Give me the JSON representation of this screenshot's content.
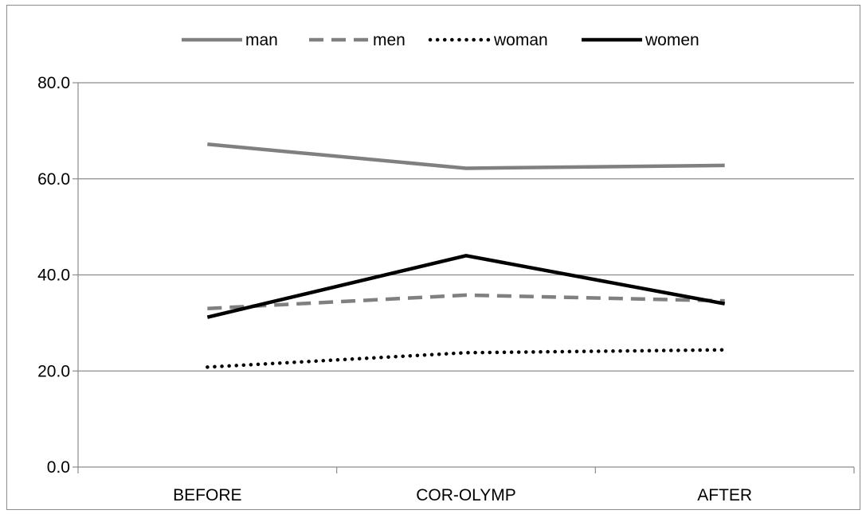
{
  "chart_data": {
    "type": "line",
    "categories": [
      "BEFORE",
      "COR-OLYMP",
      "AFTER"
    ],
    "ylim": [
      0,
      80
    ],
    "yticks": [
      "0.0",
      "20.0",
      "40.0",
      "60.0",
      "80.0"
    ],
    "ytick_values": [
      0,
      20,
      40,
      60,
      80
    ],
    "grid": true,
    "legend_position": "top",
    "series": [
      {
        "name": "man",
        "values": [
          67.2,
          62.2,
          62.8
        ],
        "color": "#808080",
        "style": "solid"
      },
      {
        "name": "men",
        "values": [
          33.0,
          35.8,
          34.6
        ],
        "color": "#808080",
        "style": "dashed"
      },
      {
        "name": "woman",
        "values": [
          20.8,
          23.8,
          24.4
        ],
        "color": "#000000",
        "style": "dotted"
      },
      {
        "name": "women",
        "values": [
          31.2,
          44.0,
          34.0
        ],
        "color": "#000000",
        "style": "solid"
      }
    ]
  }
}
